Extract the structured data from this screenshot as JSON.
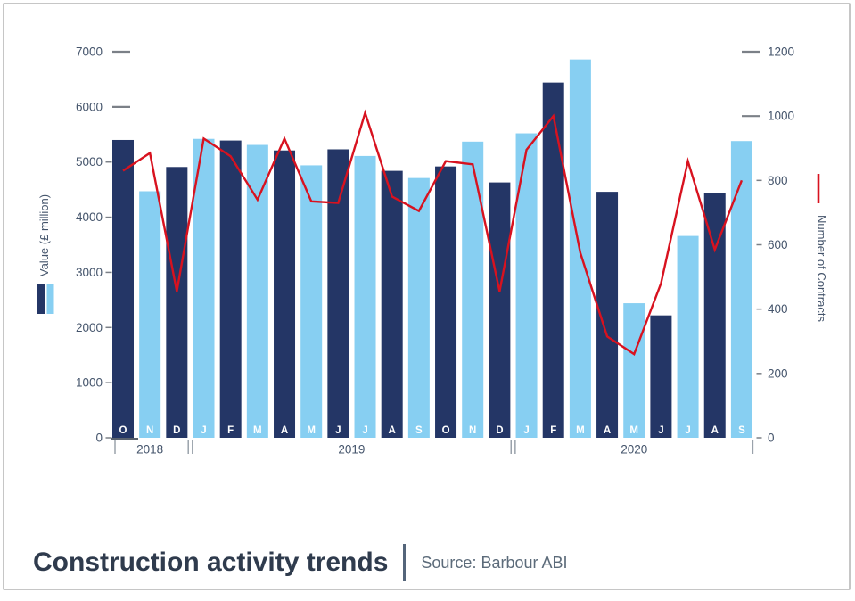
{
  "title": "Construction activity trends",
  "source": "Source: Barbour ABI",
  "chart_data": {
    "type": "bar+line",
    "title": "Construction activity trends",
    "subtitle": "Source: Barbour ABI",
    "left_axis": {
      "label": "Value (£ million)",
      "min": 0,
      "max": 7000,
      "step": 1000,
      "ticks": [
        "7000",
        "6000",
        "5000",
        "4000",
        "3000",
        "2000",
        "1000",
        "0"
      ]
    },
    "right_axis": {
      "label": "Number of Contracts",
      "min": 0,
      "max": 1200,
      "step": 200,
      "ticks": [
        "1200",
        "1000",
        "800",
        "600",
        "400",
        "200",
        "0"
      ]
    },
    "categories": [
      "O",
      "N",
      "D",
      "J",
      "F",
      "M",
      "A",
      "M",
      "J",
      "J",
      "A",
      "S",
      "O",
      "N",
      "D",
      "J",
      "F",
      "M",
      "A",
      "M",
      "J",
      "J",
      "A",
      "S"
    ],
    "years": [
      {
        "label": "2018",
        "from": 0,
        "to": 2
      },
      {
        "label": "2019",
        "from": 3,
        "to": 14
      },
      {
        "label": "2020",
        "from": 15,
        "to": 23
      }
    ],
    "series": [
      {
        "name": "Value (£ million)",
        "type": "bar",
        "values": [
          5400,
          4470,
          4910,
          5420,
          5390,
          5310,
          5210,
          4940,
          5230,
          5110,
          4840,
          4710,
          4920,
          5370,
          4630,
          5520,
          6440,
          6860,
          4460,
          2440,
          2220,
          3660,
          4440,
          5380
        ]
      },
      {
        "name": "Number of Contracts",
        "type": "line",
        "values": [
          830,
          885,
          455,
          930,
          875,
          740,
          930,
          735,
          730,
          1010,
          750,
          705,
          860,
          850,
          455,
          895,
          1000,
          575,
          315,
          260,
          480,
          860,
          585,
          800
        ]
      }
    ],
    "legend": {
      "bar_swatches": [
        "dark",
        "light"
      ],
      "line_swatch": "red"
    },
    "colors": {
      "bar_dark": "#243666",
      "bar_light": "#87cff2",
      "line": "#d8121f",
      "axis_text": "#44546b",
      "tick": "#7b8087",
      "year_sep": "#9aa2ab",
      "month_label": "#ffffff"
    },
    "grid": false
  }
}
